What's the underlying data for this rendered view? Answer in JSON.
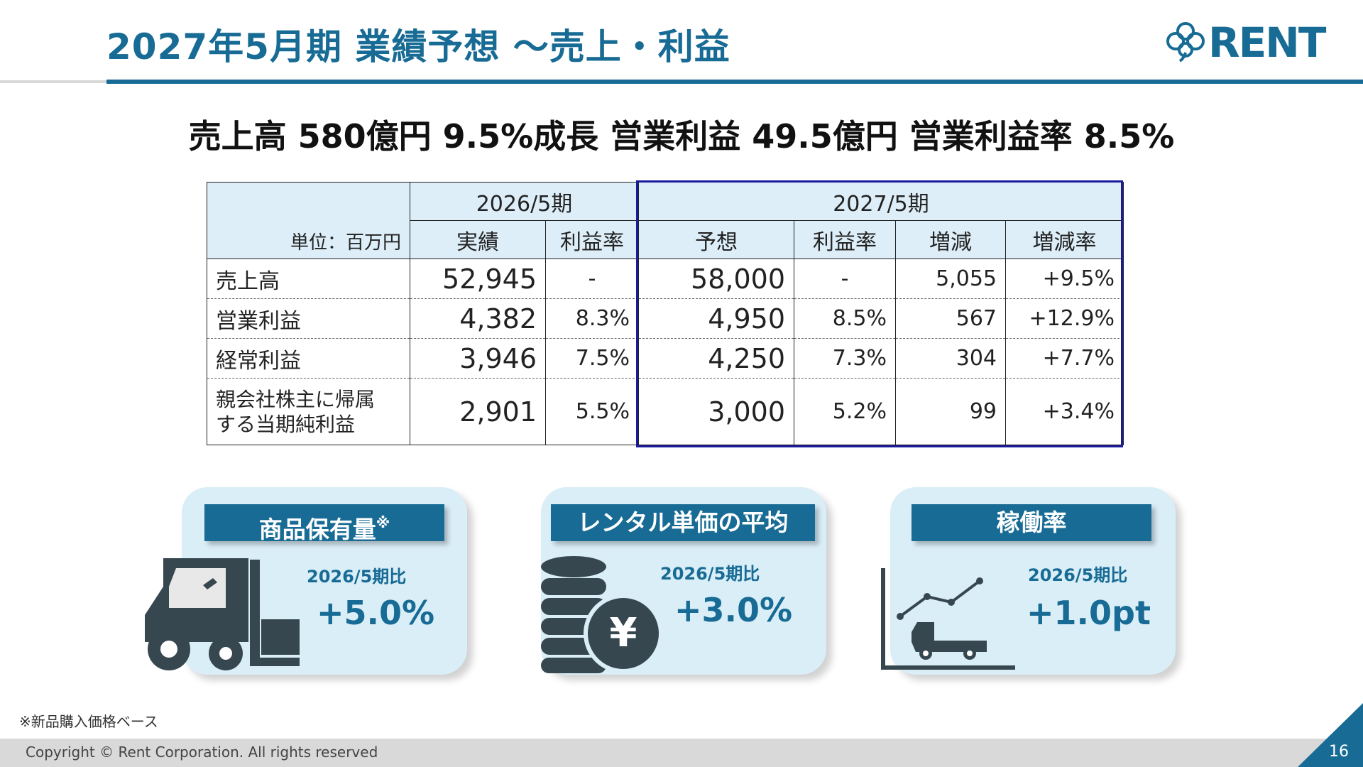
{
  "header": {
    "title": "2027年5月期 業績予想 ～売上・利益",
    "logo_text": "RENT"
  },
  "headline": "売上高 580億円  9.5%成長  営業利益 49.5億円  営業利益率 8.5%",
  "table": {
    "unit": "単位：百万円",
    "period_prev": "2026/5期",
    "period_next": "2027/5期",
    "subheaders": [
      "実績",
      "利益率",
      "予想",
      "利益率",
      "増減",
      "増減率"
    ],
    "rows": [
      {
        "label": "売上高",
        "prev": "52,945",
        "prev_margin": "-",
        "plan": "58,000",
        "plan_margin": "-",
        "change": "5,055",
        "change_rate": "+9.5%"
      },
      {
        "label": "営業利益",
        "prev": "4,382",
        "prev_margin": "8.3%",
        "plan": "4,950",
        "plan_margin": "8.5%",
        "change": "567",
        "change_rate": "+12.9%"
      },
      {
        "label": "経常利益",
        "prev": "3,946",
        "prev_margin": "7.5%",
        "plan": "4,250",
        "plan_margin": "7.3%",
        "change": "304",
        "change_rate": "+7.7%"
      },
      {
        "label_line1": "親会社株主に帰属",
        "label_line2": "する当期純利益",
        "prev": "2,901",
        "prev_margin": "5.5%",
        "plan": "3,000",
        "plan_margin": "5.2%",
        "change": "99",
        "change_rate": "+3.4%"
      }
    ]
  },
  "cards": [
    {
      "label": "商品保有量",
      "label_mark": "※",
      "comparison": "2026/5期比",
      "value": "+5.0%",
      "icon": "forklift-icon"
    },
    {
      "label": "レンタル単価の平均",
      "comparison": "2026/5期比",
      "value": "+3.0%",
      "icon": "yen-coins-icon"
    },
    {
      "label": "稼働率",
      "comparison": "2026/5期比",
      "value": "+1.0pt",
      "icon": "truck-chart-icon"
    }
  ],
  "footnote": "※新品購入価格ベース",
  "footer": {
    "copyright": "Copyright © Rent Corporation. All rights reserved",
    "page": "16"
  },
  "colors": {
    "brand": "#176b94",
    "card_bg": "#daeef8",
    "header_bg": "#ddeef8",
    "highlight_border": "#1a1a9c"
  }
}
